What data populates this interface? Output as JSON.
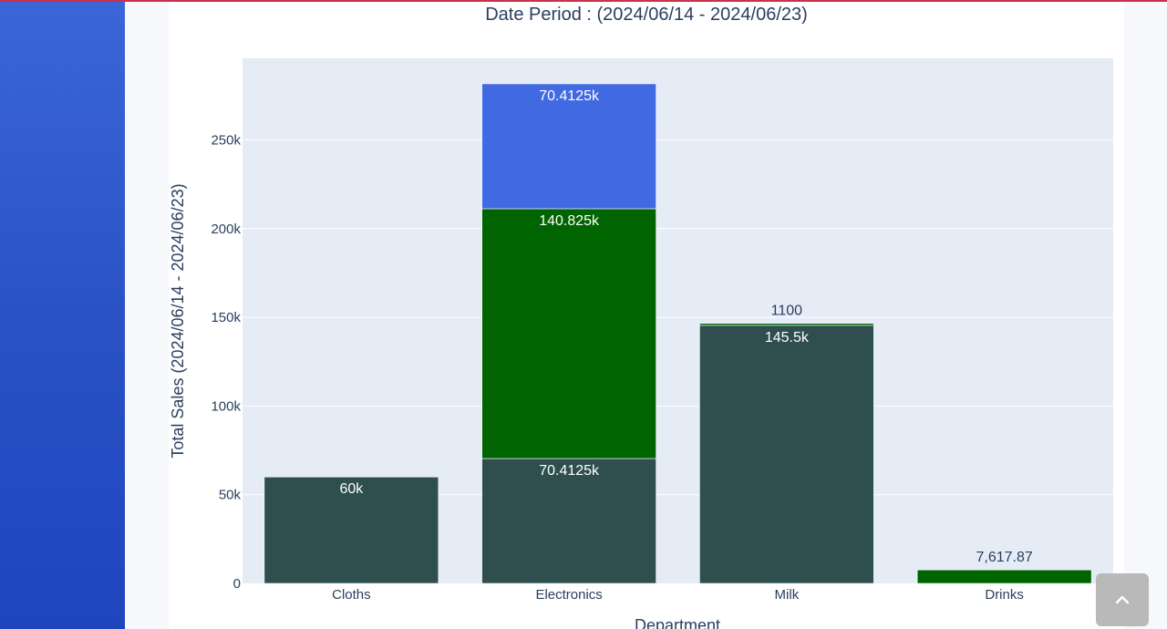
{
  "colors": {
    "sidebar": "#2a52c6",
    "accent_line": "#c8324a",
    "plot_bg": "#e5ecf6",
    "dark_slate": "#2f4f4f",
    "dark_green": "#006400",
    "royal_blue": "#4169e1",
    "axis_text": "#2a3f5f"
  },
  "scroll_top_button": {
    "icon": "chevron-up-icon"
  },
  "chart_data": {
    "type": "bar",
    "stacked": true,
    "title": "Date Period : (2024/06/14 - 2024/06/23)",
    "xlabel": "Department",
    "ylabel": "Total Sales (2024/06/14 - 2024/06/23)",
    "categories": [
      "Cloths",
      "Electronics",
      "Milk",
      "Drinks"
    ],
    "ylim": [
      0,
      296000
    ],
    "yticks": [
      0,
      50000,
      100000,
      150000,
      200000,
      250000
    ],
    "ytick_labels": [
      "0",
      "50k",
      "100k",
      "150k",
      "200k",
      "250k"
    ],
    "grid": true,
    "segments": [
      {
        "category": "Cloths",
        "base": 0,
        "value": 60000,
        "color": "#2f4f4f",
        "label": "60k",
        "label_pos": "inside"
      },
      {
        "category": "Electronics",
        "base": 0,
        "value": 70412.5,
        "color": "#2f4f4f",
        "label": "70.4125k",
        "label_pos": "inside"
      },
      {
        "category": "Electronics",
        "base": 70412.5,
        "value": 140825,
        "color": "#006400",
        "label": "140.825k",
        "label_pos": "inside"
      },
      {
        "category": "Electronics",
        "base": 211237.5,
        "value": 70412.5,
        "color": "#4169e1",
        "label": "70.4125k",
        "label_pos": "inside"
      },
      {
        "category": "Milk",
        "base": 0,
        "value": 145500,
        "color": "#2f4f4f",
        "label": "145.5k",
        "label_pos": "inside"
      },
      {
        "category": "Milk",
        "base": 145500,
        "value": 1100,
        "color": "#006400",
        "label": "1100",
        "label_pos": "outside"
      },
      {
        "category": "Drinks",
        "base": 0,
        "value": 7617.87,
        "color": "#006400",
        "label": "7,617.87",
        "label_pos": "outside"
      }
    ]
  }
}
